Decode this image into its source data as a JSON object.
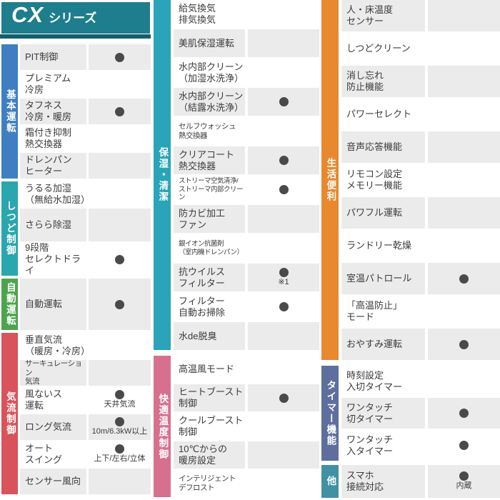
{
  "header": {
    "brand": "CX",
    "suffix": "シリーズ",
    "bg": "#1e7e8d",
    "underline": "#135f6e"
  },
  "palette": {
    "row_shaded": "#ebebeb",
    "row_plain": "#ffffff",
    "dot": "#4a4a4a",
    "text": "#3b3b3b"
  },
  "dot_symbol": "●",
  "groups": [
    {
      "id": "left",
      "sections": [
        {
          "label": "基本運転",
          "color": "#3f7fc1",
          "rows": [
            {
              "name": "PIT制御",
              "dot": true
            },
            {
              "name": "プレミアム\n冷房",
              "dot": false
            },
            {
              "name": "タフネス\n冷房・暖房",
              "dot": true
            },
            {
              "name": "霜付き抑制\n熱交換器",
              "dot": false
            },
            {
              "name": "ドレンパン\nヒーター",
              "dot": false
            }
          ]
        },
        {
          "label": "しつど制御",
          "color": "#2aa6ae",
          "rows": [
            {
              "name": "うるる加湿\n（無給水加湿）",
              "dot": false
            },
            {
              "name": "さらら除湿",
              "dot": false
            },
            {
              "name": "9段階\nセレクトドライ",
              "dot": true
            }
          ]
        },
        {
          "label": "自動運転",
          "color": "#4ca44c",
          "rows": [
            {
              "name": "自動運転",
              "dot": true
            }
          ]
        },
        {
          "label": "気流制御",
          "color": "#d9535a",
          "rows": [
            {
              "name": "垂直気流\n（暖房・冷房）",
              "dot": false
            },
            {
              "name": "サーキュレーション\n気流",
              "dot": false
            },
            {
              "name": "風ないス\n運転",
              "dot": true,
              "note": "天井気流"
            },
            {
              "name": "ロング気流",
              "dot": true,
              "note": "10m/6.3kW以上"
            },
            {
              "name": "オート\nスイング",
              "dot": true,
              "note": "上下/左右/立体"
            },
            {
              "name": "センサー風向",
              "dot": false
            }
          ]
        }
      ]
    },
    {
      "id": "middle",
      "sections": [
        {
          "label": "保湿・清潔",
          "color": "#29a4b8",
          "rows": [
            {
              "name": "給気換気\n排気換気",
              "dot": false
            },
            {
              "name": "美肌保湿運転",
              "dot": false
            },
            {
              "name": "水内部クリーン\n（加湿水洗浄）",
              "dot": false
            },
            {
              "name": "水内部クリーン\n（結露水洗浄）",
              "dot": true
            },
            {
              "name": "セルフウォッシュ\n熱交換器",
              "dot": false
            },
            {
              "name": "クリアコート\n熱交換器",
              "dot": true
            },
            {
              "name": "ストリーマ空気清浄/\nストリーマ内部クリーン",
              "dot": true
            },
            {
              "name": "防カビ加工\nファン",
              "dot": false
            },
            {
              "name": "銀イオン抗菌剤\n（室内機ドレンパン）",
              "dot": false
            },
            {
              "name": "抗ウイルス\nフィルター",
              "dot": true,
              "note": "※1"
            },
            {
              "name": "フィルター\n自動お掃除",
              "dot": true
            },
            {
              "name": "水de脱臭",
              "dot": false
            }
          ]
        },
        {
          "label": "快適温度制御",
          "color": "#d7708f",
          "rows": [
            {
              "name": "高温風モード",
              "dot": false
            },
            {
              "name": "ヒートブースト\n制御",
              "dot": true
            },
            {
              "name": "クールブースト\n制御",
              "dot": false
            },
            {
              "name": "10℃からの\n暖房設定",
              "dot": false
            },
            {
              "name": "インテリジェント\nデフロスト",
              "dot": false
            }
          ]
        }
      ]
    },
    {
      "id": "right",
      "sections": [
        {
          "label": "生活便利",
          "color": "#e8892f",
          "rows": [
            {
              "name": "人・床温度\nセンサー",
              "dot": false
            },
            {
              "name": "しつどクリーン",
              "dot": false
            },
            {
              "name": "消し忘れ\n防止機能",
              "dot": false
            },
            {
              "name": "パワーセレクト",
              "dot": false
            },
            {
              "name": "音声応答機能",
              "dot": false
            },
            {
              "name": "リモコン設定\nメモリー機能",
              "dot": false
            },
            {
              "name": "パワフル運転",
              "dot": false
            },
            {
              "name": "ランドリー乾燥",
              "dot": false
            },
            {
              "name": "室温パトロール",
              "dot": true
            },
            {
              "name": "「高温防止」\nモード",
              "dot": false
            },
            {
              "name": "おやすみ運転",
              "dot": true
            }
          ]
        },
        {
          "label": "タイマー機能",
          "color": "#5e6f9e",
          "rows": [
            {
              "name": "時刻設定\n入切タイマー",
              "dot": false
            },
            {
              "name": "ワンタッチ\n切タイマー",
              "dot": true
            },
            {
              "name": "ワンタッチ\n入タイマー",
              "dot": true
            }
          ]
        },
        {
          "label": "他",
          "color": "#4191a5",
          "rows": [
            {
              "name": "スマホ\n接続対応",
              "dot": true,
              "note": "内蔵"
            }
          ]
        }
      ]
    }
  ]
}
